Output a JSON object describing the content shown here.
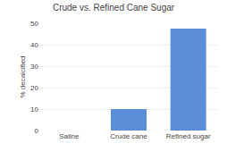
{
  "chart_data": {
    "type": "bar",
    "title": "Crude vs. Refined Cane Sugar",
    "categories": [
      "Saline",
      "Crude cane",
      "Refined sugar"
    ],
    "values": [
      0,
      10,
      47.5
    ],
    "color": "#5b8dd9",
    "ylabel": "% decalcified",
    "ylim": [
      0,
      50
    ],
    "yticks": [
      0,
      10,
      20,
      30,
      40,
      50
    ],
    "grid": true
  }
}
